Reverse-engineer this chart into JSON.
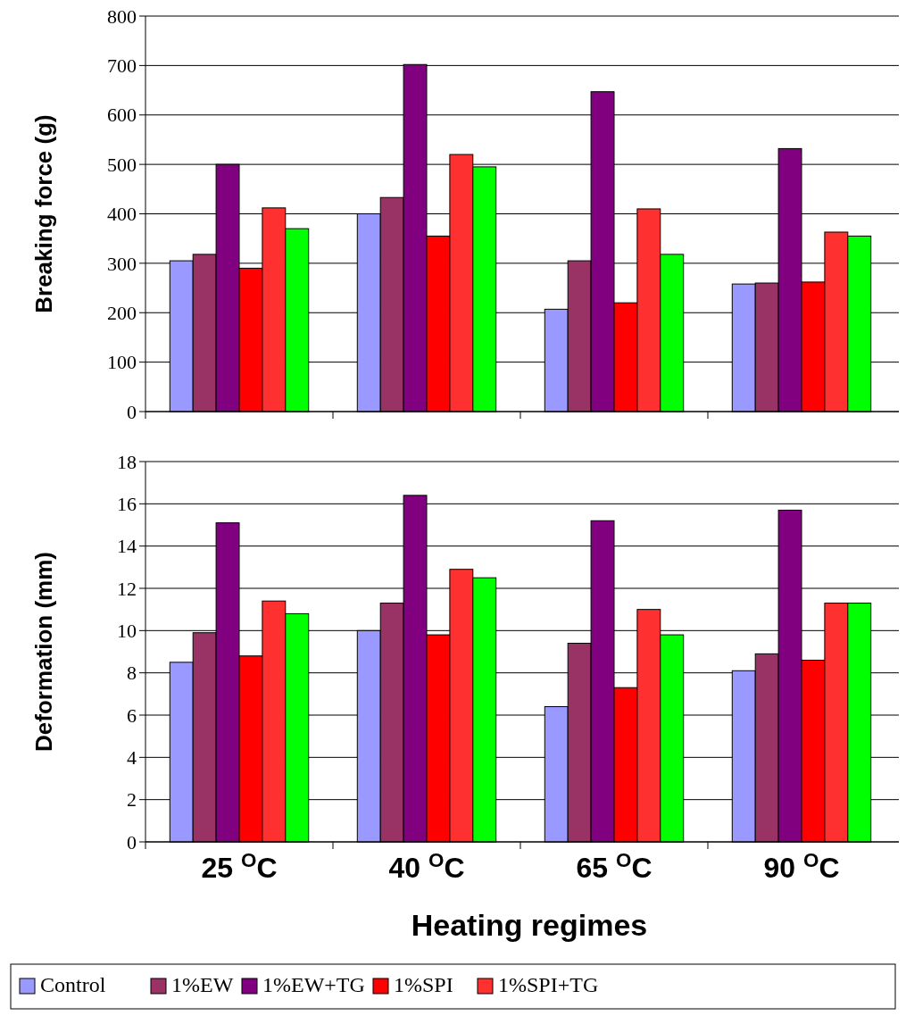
{
  "chart_data": [
    {
      "type": "bar",
      "ylabel": "Breaking force (g)",
      "categories": [
        null,
        null,
        null,
        null
      ],
      "ylim": [
        0,
        800
      ],
      "yticks": [
        0,
        100,
        200,
        300,
        400,
        500,
        600,
        700,
        800
      ],
      "grid": "y",
      "tick_labels": "y",
      "series": [
        {
          "color": "#9999ff",
          "values": [
            305,
            400,
            207,
            258
          ]
        },
        {
          "color": "#993366",
          "values": [
            318,
            433,
            305,
            260
          ]
        },
        {
          "color": "#800080",
          "values": [
            500,
            702,
            647,
            532
          ]
        },
        {
          "color": "#ff0000",
          "values": [
            290,
            355,
            220,
            262
          ]
        },
        {
          "color": "#ff3030",
          "values": [
            412,
            520,
            410,
            363
          ]
        },
        {
          "color": "#00ff00",
          "values": [
            370,
            495,
            318,
            355
          ]
        }
      ]
    },
    {
      "type": "bar",
      "ylabel": "Deformation (mm)",
      "xlabel": "Heating regimes",
      "categories": [
        "25 $^{O}$C",
        "40 $^{O}$C",
        "65 $^{O}$C",
        "90 $^{O}$C"
      ],
      "ylim": [
        0,
        18
      ],
      "yticks": [
        0,
        2,
        4,
        6,
        8,
        10,
        12,
        14,
        16,
        18
      ],
      "grid": "y",
      "legend": "bottom",
      "series": [
        {
          "name": "Control",
          "color": "#9999ff",
          "values": [
            8.5,
            10.0,
            6.4,
            8.1
          ]
        },
        {
          "name": "1%EW",
          "color": "#993366",
          "values": [
            9.9,
            11.3,
            9.4,
            8.9
          ]
        },
        {
          "name": "1%EW+TG",
          "color": "#800080",
          "values": [
            15.1,
            16.4,
            15.2,
            15.7
          ]
        },
        {
          "name": "1%SPI",
          "color": "#ff0000",
          "values": [
            8.8,
            9.8,
            7.3,
            8.6
          ]
        },
        {
          "name": "1%SPI+TG",
          "color": "#ff3030",
          "values": [
            11.4,
            12.9,
            11.0,
            11.3
          ]
        },
        {
          "color": "#00ff00",
          "values": [
            10.8,
            12.5,
            9.8,
            11.3
          ]
        }
      ]
    }
  ]
}
